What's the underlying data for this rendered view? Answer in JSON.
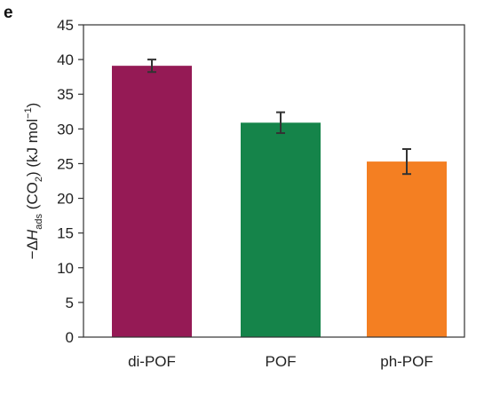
{
  "panel_label": "e",
  "chart_data": {
    "type": "bar",
    "categories": [
      "di-POF",
      "POF",
      "ph-POF"
    ],
    "values": [
      39.1,
      30.9,
      25.3
    ],
    "errors": [
      0.9,
      1.5,
      1.8
    ],
    "colors": [
      "#951a55",
      "#15844a",
      "#f47f22"
    ],
    "title": "",
    "xlabel": "",
    "ylabel_parts": {
      "prefix": "−Δ",
      "symbol": "H",
      "symbol_sub": "ads",
      "gas_open": " (CO",
      "gas_sub": "2",
      "gas_close": ") (kJ mol",
      "unit_sup": "−1",
      "unit_close": ")"
    },
    "ylim": [
      0,
      45
    ],
    "yticks": [
      0,
      5,
      10,
      15,
      20,
      25,
      30,
      35,
      40,
      45
    ],
    "grid": false,
    "legend": "none"
  }
}
